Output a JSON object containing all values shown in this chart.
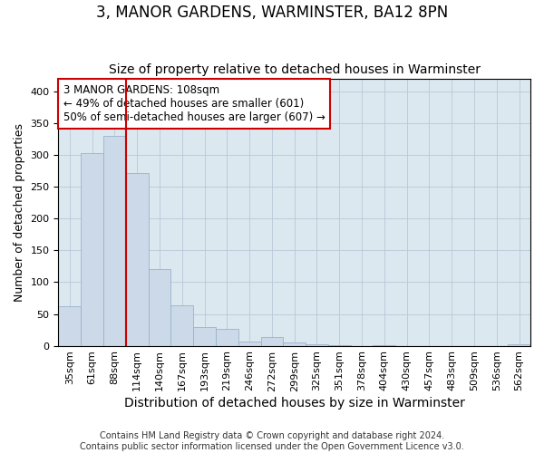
{
  "title": "3, MANOR GARDENS, WARMINSTER, BA12 8PN",
  "subtitle": "Size of property relative to detached houses in Warminster",
  "xlabel": "Distribution of detached houses by size in Warminster",
  "ylabel": "Number of detached properties",
  "footer1": "Contains HM Land Registry data © Crown copyright and database right 2024.",
  "footer2": "Contains public sector information licensed under the Open Government Licence v3.0.",
  "annotation_line1": "3 MANOR GARDENS: 108sqm",
  "annotation_line2": "← 49% of detached houses are smaller (601)",
  "annotation_line3": "50% of semi-detached houses are larger (607) →",
  "bar_categories": [
    "35sqm",
    "61sqm",
    "88sqm",
    "114sqm",
    "140sqm",
    "167sqm",
    "193sqm",
    "219sqm",
    "246sqm",
    "272sqm",
    "299sqm",
    "325sqm",
    "351sqm",
    "378sqm",
    "404sqm",
    "430sqm",
    "457sqm",
    "483sqm",
    "509sqm",
    "536sqm",
    "562sqm"
  ],
  "bar_values": [
    62,
    303,
    330,
    272,
    120,
    63,
    29,
    26,
    7,
    13,
    5,
    2,
    1,
    0,
    1,
    0,
    0,
    0,
    0,
    0,
    2
  ],
  "bar_color": "#ccd9e8",
  "bar_edge_color": "#99b3cc",
  "vline_x": 3.0,
  "vline_color": "#cc0000",
  "grid_color": "#b8c8d8",
  "background_color": "#dce8f0",
  "ylim": [
    0,
    420
  ],
  "yticks": [
    0,
    50,
    100,
    150,
    200,
    250,
    300,
    350,
    400
  ],
  "annotation_box_color": "#cc0000",
  "title_fontsize": 12,
  "subtitle_fontsize": 10,
  "ylabel_fontsize": 9,
  "xlabel_fontsize": 10,
  "tick_fontsize": 8,
  "footer_fontsize": 7
}
